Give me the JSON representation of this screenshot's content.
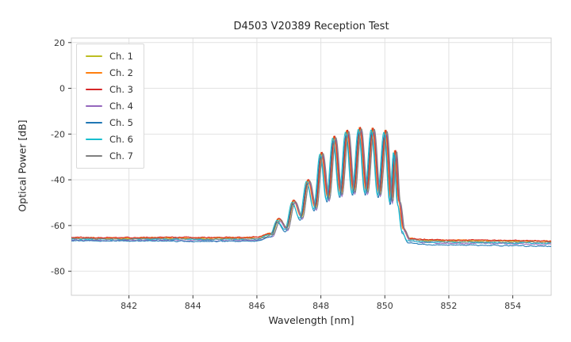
{
  "chart_data": {
    "type": "line",
    "title": "D4503 V20389 Reception Test",
    "xlabel": "Wavelength [nm]",
    "ylabel": "Optical Power [dB]",
    "xlim": [
      840.2,
      855.2
    ],
    "ylim": [
      -90.5,
      22
    ],
    "xticks": [
      842,
      844,
      846,
      848,
      850,
      852,
      854
    ],
    "yticks": [
      20,
      0,
      -20,
      -40,
      -60,
      -80
    ],
    "grid": true,
    "legend_position": "upper-left",
    "description": "Seven nearly-overlapping optical spectra: flat noise floor near -66 dB, oscillating side lobes rising from 846.5 nm, main lobes between 848 and 850.4 nm peaking near -18 dB with notches near -46 dB, sharp falloff at 850.5 nm back to a floor near -67 dB",
    "base_curve": {
      "x": [
        840.3,
        841.5,
        843.0,
        844.5,
        845.5,
        846.0,
        846.45,
        846.68,
        846.92,
        847.15,
        847.38,
        847.6,
        847.82,
        848.02,
        848.22,
        848.42,
        848.62,
        848.82,
        849.02,
        849.22,
        849.42,
        849.62,
        849.82,
        850.02,
        850.2,
        850.32,
        850.44,
        850.58,
        850.75,
        851.2,
        852.0,
        853.0,
        854.0,
        855.0
      ],
      "y": [
        -65.8,
        -65.9,
        -65.8,
        -65.9,
        -65.8,
        -65.7,
        -64.0,
        -57.5,
        -61.5,
        -49.5,
        -56.5,
        -40.5,
        -52.5,
        -28.5,
        -48.5,
        -21.5,
        -46.5,
        -18.8,
        -45.5,
        -17.6,
        -45.5,
        -17.9,
        -46.5,
        -18.8,
        -49.5,
        -27.5,
        -50.0,
        -62.0,
        -66.2,
        -66.8,
        -67.0,
        -67.1,
        -67.2,
        -67.4
      ]
    },
    "series": [
      {
        "name": "Ch. 1",
        "color": "#bcbd22",
        "dx": 0.02,
        "dy": 0.3,
        "tilt": 0.1
      },
      {
        "name": "Ch. 2",
        "color": "#ff7f0e",
        "dx": -0.01,
        "dy": 0.5,
        "tilt": 0.2
      },
      {
        "name": "Ch. 3",
        "color": "#d62728",
        "dx": 0.01,
        "dy": 0.6,
        "tilt": 0.1
      },
      {
        "name": "Ch. 4",
        "color": "#9467bd",
        "dx": 0.04,
        "dy": -0.6,
        "tilt": -0.2
      },
      {
        "name": "Ch. 5",
        "color": "#1f77b4",
        "dx": -0.03,
        "dy": -0.8,
        "tilt": -0.9
      },
      {
        "name": "Ch. 6",
        "color": "#17becf",
        "dx": -0.05,
        "dy": -0.1,
        "tilt": -0.3
      },
      {
        "name": "Ch. 7",
        "color": "#7f7f7f",
        "dx": 0.05,
        "dy": 0.0,
        "tilt": 0.0
      }
    ]
  }
}
